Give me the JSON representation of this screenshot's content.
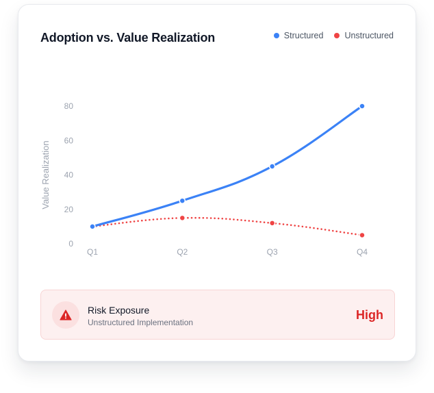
{
  "colors": {
    "structured": "#3b82f6",
    "unstructured": "#ef4444",
    "risk_text": "#dc2626",
    "axis_text": "#9ca3af"
  },
  "chart_data": {
    "type": "line",
    "title": "Adoption vs. Value Realization",
    "ylabel": "Value Realization",
    "xlabel": "",
    "categories": [
      "Q1",
      "Q2",
      "Q3",
      "Q4"
    ],
    "yticks": [
      0,
      20,
      40,
      60,
      80
    ],
    "ylim": [
      0,
      80
    ],
    "grid": false,
    "legend_position": "top-right",
    "series": [
      {
        "name": "Structured",
        "color": "#3b82f6",
        "style": "solid",
        "values": [
          10,
          25,
          45,
          80
        ]
      },
      {
        "name": "Unstructured",
        "color": "#ef4444",
        "style": "dotted",
        "values": [
          10,
          15,
          12,
          5
        ]
      }
    ]
  },
  "risk": {
    "icon": "warning-icon",
    "title": "Risk Exposure",
    "subtitle": "Unstructured Implementation",
    "level": "High"
  }
}
